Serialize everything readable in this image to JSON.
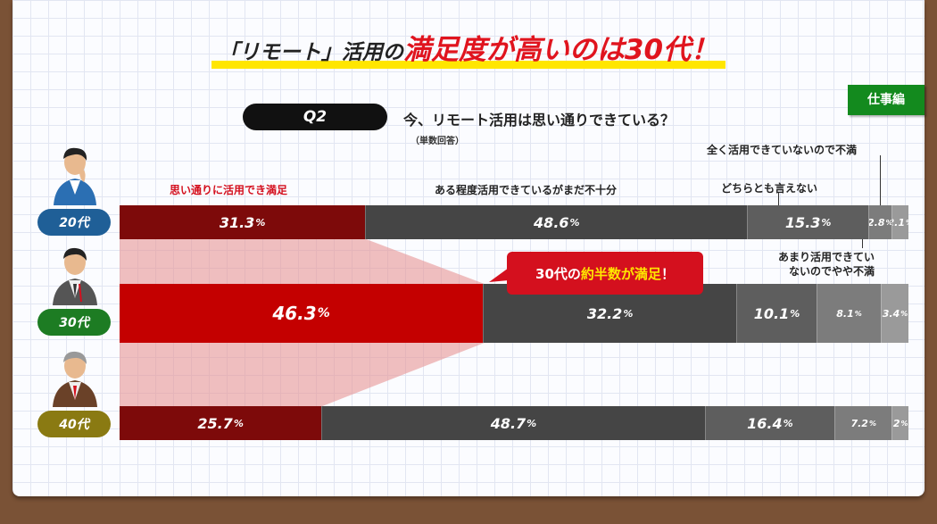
{
  "headline": {
    "prefix": "「リモート」活用の",
    "emphasis": "満足度が高いのは30代！"
  },
  "question": {
    "tag": "Q2",
    "text": "今、リモート活用は思い通りできている？",
    "note": "（単数回答）"
  },
  "section_tab": "仕事編",
  "callout": {
    "before": "30代の",
    "highlight": "約半数が満足",
    "after": "！"
  },
  "colors": {
    "red_dark": "#7d0a0a",
    "red": "#c40000",
    "gray1": "#454545",
    "gray2": "#5e5e5e",
    "gray3": "#7c7c7c",
    "gray4": "#9a9a9a",
    "accent_yellow": "#ffe600",
    "tab_green": "#138a1e"
  },
  "chart_data": {
    "type": "bar",
    "orientation": "horizontal-stacked-100",
    "categories": [
      "20代",
      "30代",
      "40代"
    ],
    "series": [
      {
        "name": "思い通りに活用でき満足",
        "values": [
          31.3,
          46.3,
          25.7
        ]
      },
      {
        "name": "ある程度活用できているがまだ不十分",
        "values": [
          48.6,
          32.2,
          48.7
        ]
      },
      {
        "name": "どちらとも言えない",
        "values": [
          15.3,
          10.1,
          16.4
        ]
      },
      {
        "name": "あまり活用できていないのでやや不満",
        "values": [
          2.8,
          8.1,
          7.2
        ]
      },
      {
        "name": "全く活用できていないので不満",
        "values": [
          2.1,
          3.4,
          2
        ]
      }
    ],
    "value_labels": [
      [
        "31.3%",
        "48.6%",
        "15.3%",
        "2.8%",
        "2.1%"
      ],
      [
        "46.3%",
        "32.2%",
        "10.1%",
        "8.1%",
        "3.4%"
      ],
      [
        "25.7%",
        "48.7%",
        "16.4%",
        "7.2%",
        "2%"
      ]
    ],
    "xlim": [
      0,
      100
    ],
    "legend": "labels above first bar"
  }
}
